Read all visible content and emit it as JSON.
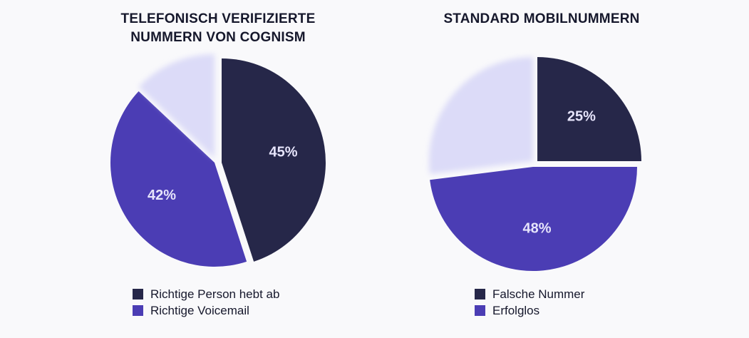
{
  "colors": {
    "dark": "#262749",
    "purple": "#4b3db4",
    "light": "#dcdbf8",
    "text": "#16182c",
    "background": "#f9f9fb"
  },
  "chart_data": [
    {
      "type": "pie",
      "title": [
        "TELEFONISCH VERIFIZIERTE",
        "NUMMERN VON COGNISM"
      ],
      "slices": [
        {
          "label": "Richtige Person hebt ab",
          "value": 45,
          "display": "45%",
          "color": "#262749"
        },
        {
          "label": "Richtige Voicemail",
          "value": 42,
          "display": "42%",
          "color": "#4b3db4"
        },
        {
          "label": "",
          "value": 13,
          "display": "",
          "color": "#dcdbf8"
        }
      ],
      "legend": [
        "Richtige Person hebt ab",
        "Richtige Voicemail"
      ],
      "legend_position": "bottom"
    },
    {
      "type": "pie",
      "title": [
        "STANDARD MOBILNUMMERN"
      ],
      "slices": [
        {
          "label": "Falsche Nummer",
          "value": 25,
          "display": "25%",
          "color": "#262749"
        },
        {
          "label": "Erfolglos",
          "value": 48,
          "display": "48%",
          "color": "#4b3db4"
        },
        {
          "label": "",
          "value": 27,
          "display": "",
          "color": "#dcdbf8"
        }
      ],
      "legend": [
        "Falsche Nummer",
        "Erfolglos"
      ],
      "legend_position": "bottom"
    }
  ]
}
